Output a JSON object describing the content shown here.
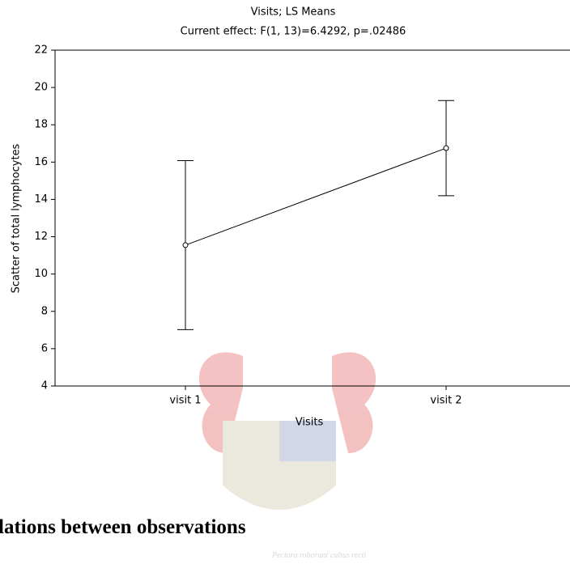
{
  "chart_data": {
    "type": "point",
    "title": "Visits; LS Means",
    "subtitle": "Current effect: F(1, 13)=6.4292, p=.02486",
    "x_label": "Visits",
    "y_label": "Scatter of total lymphocytes",
    "categories": [
      "visit 1",
      "visit 2"
    ],
    "values": [
      11.55,
      16.75
    ],
    "errors": [
      4.53,
      2.55
    ],
    "color": "#000000",
    "ylim": [
      4,
      22
    ],
    "yticks": [
      4,
      6,
      8,
      10,
      12,
      14,
      16,
      18,
      20,
      22
    ]
  },
  "heading": "lations between observations",
  "watermark_motto": "Pectora roborant cultus recti"
}
